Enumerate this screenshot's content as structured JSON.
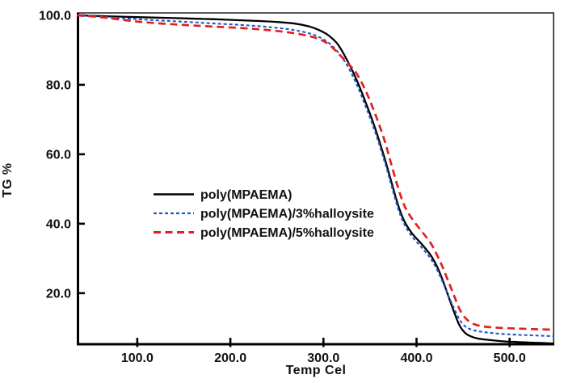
{
  "chart_data": {
    "type": "line",
    "title": "",
    "xlabel": "Temp Cel",
    "ylabel": "TG %",
    "xlim": [
      35,
      548
    ],
    "ylim": [
      5.3,
      100.7
    ],
    "grid": false,
    "legend_position": "inside-center-left",
    "x_ticks": [
      100,
      200,
      300,
      400,
      500
    ],
    "x_tick_labels": [
      "100.0",
      "200.0",
      "300.0",
      "400.0",
      "500.0"
    ],
    "y_ticks": [
      20,
      40,
      60,
      80,
      100
    ],
    "y_tick_labels": [
      "20.0",
      "40.0",
      "60.0",
      "80.0",
      "100.0"
    ],
    "x": [
      35,
      60,
      100,
      140,
      180,
      220,
      250,
      270,
      285,
      295,
      305,
      315,
      325,
      335,
      345,
      355,
      365,
      372,
      380,
      387,
      395,
      405,
      415,
      422,
      428,
      434,
      440,
      446,
      452,
      458,
      465,
      475,
      490,
      510,
      530,
      548
    ],
    "series": [
      {
        "name": "poly(MPAEMA)",
        "color": "#000000",
        "dash": "solid",
        "values": [
          100,
          99.8,
          99.5,
          99.2,
          98.9,
          98.5,
          98.1,
          97.6,
          96.8,
          95.8,
          94.3,
          91.8,
          87.3,
          81.8,
          75.2,
          67.9,
          59.5,
          53.0,
          45.5,
          40.7,
          37.3,
          34.3,
          31.0,
          27.7,
          23.8,
          19.3,
          14.8,
          10.8,
          8.6,
          7.6,
          7.0,
          6.6,
          6.2,
          5.9,
          5.7,
          5.5
        ]
      },
      {
        "name": "poly(MPAEMA)/3%halloysite",
        "color": "#2457c5",
        "dash": "short-dash",
        "values": [
          100,
          99.6,
          98.9,
          98.3,
          97.7,
          97.1,
          96.4,
          95.7,
          94.8,
          93.8,
          92.2,
          89.6,
          85.8,
          80.5,
          74.0,
          66.8,
          58.5,
          52.0,
          44.5,
          39.8,
          36.4,
          33.3,
          30.0,
          26.8,
          23.2,
          19.4,
          15.8,
          12.5,
          10.5,
          9.6,
          9.1,
          8.7,
          8.3,
          8.0,
          7.8,
          7.6
        ]
      },
      {
        "name": "poly(MPAEMA)/5%halloysite",
        "color": "#e2201f",
        "dash": "long-dash",
        "values": [
          100,
          99.5,
          98.2,
          97.4,
          96.8,
          96.2,
          95.5,
          94.8,
          94.0,
          93.2,
          91.8,
          89.3,
          86.5,
          83.5,
          78.5,
          72.0,
          64.5,
          58.0,
          50.5,
          45.2,
          41.5,
          38.0,
          34.5,
          31.0,
          27.5,
          23.5,
          19.5,
          15.5,
          13.0,
          11.6,
          10.8,
          10.3,
          10.0,
          9.8,
          9.6,
          9.5
        ]
      }
    ]
  }
}
